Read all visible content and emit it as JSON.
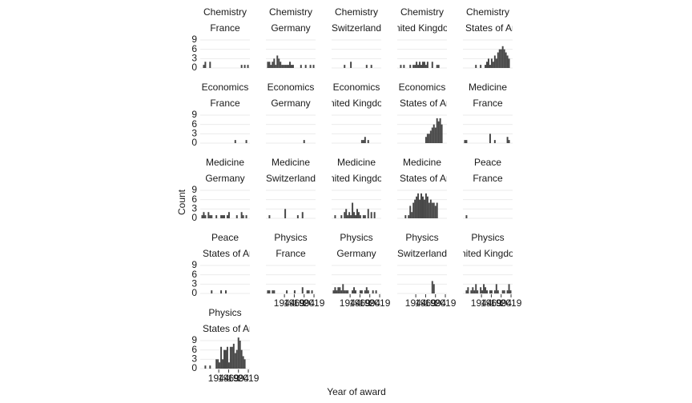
{
  "chart_data": {
    "type": "histogram",
    "xlabel": "Year of award",
    "ylabel": "Count",
    "color": "#474747",
    "grid": true,
    "bins": [
      1900,
      1904,
      1908,
      1912,
      1916,
      1920,
      1924,
      1928,
      1932,
      1936,
      1940,
      1944,
      1948,
      1952,
      1956,
      1960,
      1964,
      1968,
      1972,
      1976,
      1980,
      1984,
      1988,
      1992,
      1996,
      2000,
      2004,
      2008,
      2012,
      2016,
      2020
    ],
    "xlim": [
      1897,
      2023
    ],
    "xticks": [
      1944,
      1969,
      1994,
      2019
    ],
    "ylim": [
      0,
      10.5
    ],
    "yticks": [
      0,
      3,
      6,
      9
    ],
    "panels": [
      {
        "title": "Chemistry",
        "subtitle": "France",
        "counts": [
          0,
          1,
          2,
          0,
          0,
          2,
          0,
          0,
          0,
          0,
          0,
          0,
          0,
          0,
          0,
          0,
          0,
          0,
          0,
          0,
          0,
          0,
          0,
          0,
          0,
          1,
          0,
          1,
          0,
          1
        ]
      },
      {
        "title": "Chemistry",
        "subtitle": "Germany",
        "counts": [
          2,
          2,
          1,
          2,
          3,
          1,
          4,
          3,
          2,
          1,
          1,
          1,
          1,
          1,
          2,
          1,
          1,
          0,
          0,
          0,
          0,
          1,
          0,
          0,
          1,
          0,
          0,
          1,
          0,
          1
        ]
      },
      {
        "title": "Chemistry",
        "subtitle": "Switzerland",
        "counts": [
          0,
          0,
          0,
          0,
          0,
          0,
          0,
          1,
          0,
          0,
          0,
          2,
          0,
          0,
          0,
          0,
          0,
          0,
          0,
          0,
          0,
          1,
          0,
          0,
          1,
          0,
          0,
          0,
          0,
          0
        ]
      },
      {
        "title": "Chemistry",
        "subtitle": "United Kingdom",
        "counts": [
          0,
          1,
          0,
          1,
          0,
          0,
          0,
          1,
          0,
          1,
          1,
          2,
          1,
          2,
          1,
          2,
          2,
          1,
          2,
          0,
          0,
          2,
          0,
          0,
          1,
          1,
          0,
          0,
          0,
          0
        ]
      },
      {
        "title": "Chemistry",
        "subtitle": "United States of America",
        "counts": [
          0,
          0,
          0,
          0,
          0,
          0,
          0,
          1,
          0,
          0,
          1,
          0,
          0,
          1,
          2,
          3,
          1,
          3,
          2,
          4,
          3,
          5,
          6,
          6,
          7,
          6,
          5,
          4,
          3,
          0
        ]
      },
      {
        "title": "Economics",
        "subtitle": "France",
        "counts": [
          0,
          0,
          0,
          0,
          0,
          0,
          0,
          0,
          0,
          0,
          0,
          0,
          0,
          0,
          0,
          0,
          0,
          0,
          0,
          0,
          0,
          1,
          0,
          0,
          0,
          0,
          0,
          0,
          1,
          0
        ]
      },
      {
        "title": "Economics",
        "subtitle": "Germany",
        "counts": [
          0,
          0,
          0,
          0,
          0,
          0,
          0,
          0,
          0,
          0,
          0,
          0,
          0,
          0,
          0,
          0,
          0,
          0,
          0,
          0,
          0,
          0,
          0,
          1,
          0,
          0,
          0,
          0,
          0,
          0
        ]
      },
      {
        "title": "Economics",
        "subtitle": "United Kingdom",
        "counts": [
          0,
          0,
          0,
          0,
          0,
          0,
          0,
          0,
          0,
          0,
          0,
          0,
          0,
          0,
          0,
          0,
          0,
          0,
          1,
          1,
          2,
          0,
          1,
          0,
          0,
          0,
          0,
          0,
          0,
          0
        ]
      },
      {
        "title": "Economics",
        "subtitle": "United States of America",
        "counts": [
          0,
          0,
          0,
          0,
          0,
          0,
          0,
          0,
          0,
          0,
          0,
          0,
          0,
          0,
          0,
          0,
          0,
          2,
          3,
          3,
          4,
          5,
          6,
          5,
          8,
          7,
          8,
          6,
          0,
          0
        ]
      },
      {
        "title": "Medicine",
        "subtitle": "France",
        "counts": [
          1,
          1,
          0,
          0,
          0,
          0,
          0,
          0,
          0,
          0,
          0,
          0,
          0,
          0,
          0,
          0,
          3,
          0,
          0,
          1,
          0,
          0,
          0,
          0,
          0,
          0,
          0,
          2,
          1,
          0
        ]
      },
      {
        "title": "Medicine",
        "subtitle": "Germany",
        "counts": [
          1,
          2,
          1,
          0,
          2,
          1,
          1,
          0,
          0,
          1,
          0,
          0,
          1,
          1,
          1,
          0,
          1,
          2,
          0,
          0,
          0,
          0,
          1,
          0,
          0,
          2,
          1,
          0,
          1,
          0
        ]
      },
      {
        "title": "Medicine",
        "subtitle": "Switzerland",
        "counts": [
          0,
          1,
          0,
          0,
          0,
          0,
          0,
          0,
          0,
          0,
          0,
          3,
          0,
          0,
          0,
          0,
          0,
          0,
          0,
          1,
          0,
          0,
          2,
          0,
          0,
          0,
          0,
          0,
          0,
          0
        ]
      },
      {
        "title": "Medicine",
        "subtitle": "United Kingdom",
        "counts": [
          0,
          1,
          0,
          0,
          0,
          1,
          0,
          2,
          3,
          1,
          2,
          1,
          5,
          2,
          1,
          3,
          2,
          1,
          0,
          1,
          1,
          0,
          3,
          0,
          2,
          0,
          2,
          0,
          0,
          0
        ]
      },
      {
        "title": "Medicine",
        "subtitle": "United States of America",
        "counts": [
          0,
          0,
          0,
          0,
          1,
          0,
          1,
          4,
          2,
          5,
          6,
          7,
          8,
          6,
          8,
          7,
          6,
          8,
          7,
          5,
          6,
          5,
          5,
          4,
          5,
          0,
          0,
          0,
          0,
          0
        ]
      },
      {
        "title": "Peace",
        "subtitle": "France",
        "counts": [
          0,
          1,
          0,
          0,
          0,
          0,
          0,
          0,
          0,
          0,
          0,
          0,
          0,
          0,
          0,
          0,
          0,
          0,
          0,
          0,
          0,
          0,
          0,
          0,
          0,
          0,
          0,
          0,
          0,
          0
        ]
      },
      {
        "title": "Peace",
        "subtitle": "United States of America",
        "counts": [
          0,
          0,
          0,
          0,
          0,
          0,
          1,
          0,
          0,
          0,
          0,
          0,
          1,
          0,
          0,
          1,
          0,
          0,
          0,
          0,
          0,
          0,
          0,
          0,
          0,
          0,
          0,
          0,
          0,
          0
        ]
      },
      {
        "title": "Physics",
        "subtitle": "France",
        "counts": [
          1,
          1,
          0,
          1,
          1,
          0,
          0,
          0,
          0,
          0,
          0,
          0,
          1,
          0,
          0,
          0,
          0,
          1,
          0,
          0,
          0,
          0,
          2,
          0,
          0,
          1,
          1,
          0,
          1,
          0
        ]
      },
      {
        "title": "Physics",
        "subtitle": "Germany",
        "counts": [
          1,
          2,
          1,
          2,
          2,
          1,
          3,
          1,
          1,
          1,
          0,
          0,
          1,
          2,
          1,
          0,
          0,
          1,
          1,
          0,
          1,
          2,
          1,
          0,
          0,
          1,
          0,
          1,
          0,
          0
        ]
      },
      {
        "title": "Physics",
        "subtitle": "Switzerland",
        "counts": [
          0,
          0,
          0,
          0,
          0,
          0,
          0,
          0,
          0,
          0,
          0,
          0,
          0,
          0,
          0,
          0,
          0,
          0,
          0,
          0,
          0,
          4,
          3,
          0,
          0,
          0,
          0,
          0,
          0,
          0
        ]
      },
      {
        "title": "Physics",
        "subtitle": "United Kingdom",
        "counts": [
          0,
          1,
          2,
          0,
          1,
          2,
          1,
          3,
          1,
          0,
          2,
          1,
          3,
          2,
          1,
          0,
          1,
          1,
          0,
          1,
          3,
          1,
          0,
          0,
          1,
          1,
          0,
          1,
          3,
          1
        ]
      },
      {
        "title": "Physics",
        "subtitle": "United States of America",
        "counts": [
          0,
          0,
          1,
          0,
          0,
          1,
          0,
          0,
          0,
          3,
          3,
          2,
          7,
          3,
          6,
          6,
          7,
          2,
          7,
          7,
          8,
          5,
          6,
          10,
          9,
          6,
          4,
          3,
          0,
          0
        ]
      }
    ]
  }
}
